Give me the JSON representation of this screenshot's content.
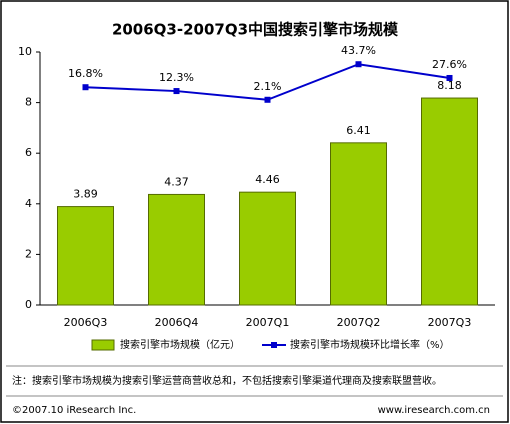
{
  "chart_data": {
    "type": "bar_line",
    "title": "2006Q3-2007Q3中国搜索引擎市场规模",
    "categories": [
      "2006Q3",
      "2006Q4",
      "2007Q1",
      "2007Q2",
      "2007Q3"
    ],
    "series": [
      {
        "name": "搜索引擎市场规模（亿元）",
        "color": "#99cc00",
        "values": [
          3.89,
          4.37,
          4.46,
          6.41,
          8.18
        ]
      },
      {
        "name": "搜索引擎市场规模环比增长率（%）",
        "color": "#0000cc",
        "axis": "y2",
        "values": [
          16.8,
          12.3,
          2.1,
          43.7,
          27.6
        ],
        "value_labels": [
          "16.8%",
          "12.3%",
          "2.1%",
          "43.7%",
          "27.6%"
        ]
      }
    ],
    "ylim": [
      0,
      10
    ],
    "yticks": [
      0,
      2,
      4,
      6,
      8,
      10
    ],
    "y2lim": [
      -238,
      58
    ],
    "grid": false
  },
  "note": "注：搜索引擎市场规模为搜索引擎运营商营收总和，不包括搜索引擎渠道代理商及搜索联盟营收。",
  "footer": {
    "copyright": "©2007.10 iResearch Inc.",
    "url": "www.iresearch.com.cn"
  }
}
